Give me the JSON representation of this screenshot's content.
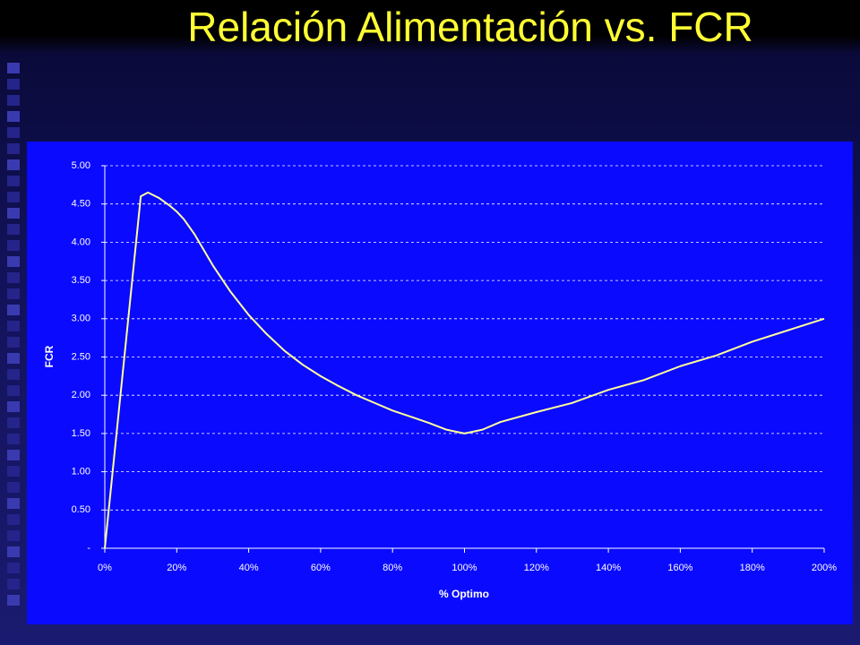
{
  "chart_data": {
    "type": "line",
    "title": "Relación Alimentación vs. FCR",
    "x_label": "% Optimo",
    "y_label": "FCR",
    "x": [
      0,
      5,
      10,
      12,
      15,
      18,
      20,
      22,
      25,
      30,
      35,
      40,
      45,
      50,
      55,
      60,
      65,
      70,
      75,
      80,
      85,
      90,
      95,
      100,
      105,
      110,
      120,
      130,
      140,
      150,
      160,
      170,
      180,
      190,
      200
    ],
    "values": [
      0,
      2.3,
      4.6,
      4.65,
      4.58,
      4.48,
      4.4,
      4.3,
      4.1,
      3.7,
      3.35,
      3.05,
      2.8,
      2.58,
      2.4,
      2.25,
      2.12,
      2.0,
      1.9,
      1.8,
      1.72,
      1.64,
      1.55,
      1.5,
      1.55,
      1.65,
      1.78,
      1.9,
      2.07,
      2.2,
      2.38,
      2.52,
      2.7,
      2.85,
      3.0
    ],
    "color": "#ffff99",
    "xlim": [
      0,
      200
    ],
    "ylim": [
      0,
      5
    ],
    "xticks": [
      {
        "value": 0,
        "label": "0%"
      },
      {
        "value": 20,
        "label": "20%"
      },
      {
        "value": 40,
        "label": "40%"
      },
      {
        "value": 60,
        "label": "60%"
      },
      {
        "value": 80,
        "label": "80%"
      },
      {
        "value": 100,
        "label": "100%"
      },
      {
        "value": 120,
        "label": "120%"
      },
      {
        "value": 140,
        "label": "140%"
      },
      {
        "value": 160,
        "label": "160%"
      },
      {
        "value": 180,
        "label": "180%"
      },
      {
        "value": 200,
        "label": "200%"
      }
    ],
    "yticks": [
      {
        "value": 0,
        "label": "-"
      },
      {
        "value": 0.5,
        "label": "0.50"
      },
      {
        "value": 1,
        "label": "1.00"
      },
      {
        "value": 1.5,
        "label": "1.50"
      },
      {
        "value": 2,
        "label": "2.00"
      },
      {
        "value": 2.5,
        "label": "2.50"
      },
      {
        "value": 3,
        "label": "3.00"
      },
      {
        "value": 3.5,
        "label": "3.50"
      },
      {
        "value": 4,
        "label": "4.00"
      },
      {
        "value": 4.5,
        "label": "4.50"
      },
      {
        "value": 5,
        "label": "5.00"
      }
    ],
    "grid": true
  }
}
